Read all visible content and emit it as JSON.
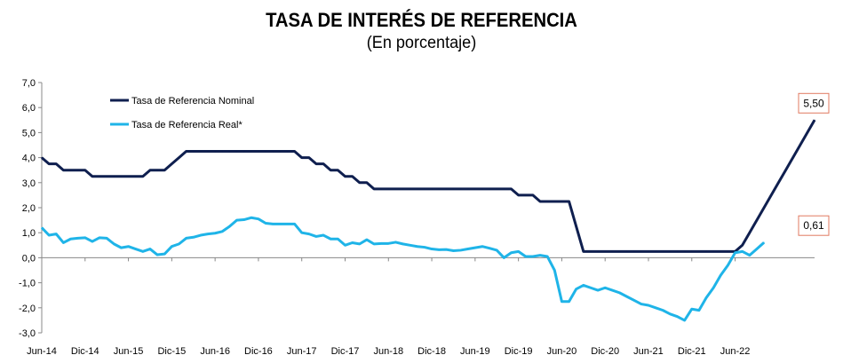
{
  "chart_data": {
    "type": "line",
    "title": "TASA DE INTERÉS DE REFERENCIA",
    "subtitle": "(En porcentaje)",
    "xlabel": "",
    "ylabel": "",
    "ylim": [
      -3.0,
      7.0
    ],
    "yticks": [
      "7,0",
      "6,0",
      "5,0",
      "4,0",
      "3,0",
      "2,0",
      "1,0",
      "0,0",
      "-1,0",
      "-2,0",
      "-3,0"
    ],
    "x_tick_labels": [
      "Jun-14",
      "Dic-14",
      "Jun-15",
      "Dic-15",
      "Jun-16",
      "Dic-16",
      "Jun-17",
      "Dic-17",
      "Jun-18",
      "Dic-18",
      "Jun-19",
      "Dic-19",
      "Jun-20",
      "Dic-20",
      "Jun-21",
      "Dic-21",
      "Jun-22"
    ],
    "grid": false,
    "legend_position": "top-left",
    "series": [
      {
        "name": "Tasa de Referencia Nominal",
        "color": "#0f1f4f",
        "values": [
          4.0,
          3.75,
          3.75,
          3.5,
          3.5,
          3.5,
          3.5,
          3.25,
          3.25,
          3.25,
          3.25,
          3.25,
          3.25,
          3.25,
          3.25,
          3.5,
          3.5,
          3.5,
          3.75,
          4.0,
          4.25,
          4.25,
          4.25,
          4.25,
          4.25,
          4.25,
          4.25,
          4.25,
          4.25,
          4.25,
          4.25,
          4.25,
          4.25,
          4.25,
          4.25,
          4.25,
          4.0,
          4.0,
          3.75,
          3.75,
          3.5,
          3.5,
          3.25,
          3.25,
          3.0,
          3.0,
          2.75,
          2.75,
          2.75,
          2.75,
          2.75,
          2.75,
          2.75,
          2.75,
          2.75,
          2.75,
          2.75,
          2.75,
          2.75,
          2.75,
          2.75,
          2.75,
          2.75,
          2.75,
          2.75,
          2.75,
          2.5,
          2.5,
          2.5,
          2.25,
          2.25,
          2.25,
          2.25,
          2.25,
          1.25,
          0.25,
          0.25,
          0.25,
          0.25,
          0.25,
          0.25,
          0.25,
          0.25,
          0.25,
          0.25,
          0.25,
          0.25,
          0.25,
          0.25,
          0.25,
          0.25,
          0.25,
          0.25,
          0.25,
          0.25,
          0.25,
          0.25,
          0.5,
          1.0,
          1.5,
          2.0,
          2.5,
          3.0,
          3.5,
          4.0,
          4.5,
          5.0,
          5.5
        ]
      },
      {
        "name": "Tasa de Referencia Real*",
        "color": "#1fb4e8",
        "values": [
          1.2,
          0.9,
          0.95,
          0.6,
          0.75,
          0.78,
          0.8,
          0.65,
          0.8,
          0.78,
          0.55,
          0.4,
          0.45,
          0.35,
          0.25,
          0.35,
          0.12,
          0.15,
          0.45,
          0.55,
          0.78,
          0.82,
          0.9,
          0.95,
          0.98,
          1.05,
          1.25,
          1.5,
          1.52,
          1.6,
          1.55,
          1.38,
          1.35,
          1.35,
          1.35,
          1.35,
          1.0,
          0.95,
          0.85,
          0.9,
          0.75,
          0.75,
          0.5,
          0.6,
          0.55,
          0.72,
          0.55,
          0.57,
          0.57,
          0.62,
          0.55,
          0.5,
          0.45,
          0.42,
          0.35,
          0.32,
          0.33,
          0.28,
          0.3,
          0.35,
          0.4,
          0.45,
          0.38,
          0.3,
          0.0,
          0.2,
          0.25,
          0.05,
          0.05,
          0.1,
          0.05,
          -0.5,
          -1.75,
          -1.75,
          -1.25,
          -1.1,
          -1.2,
          -1.3,
          -1.2,
          -1.3,
          -1.4,
          -1.55,
          -1.7,
          -1.85,
          -1.9,
          -2.0,
          -2.1,
          -2.25,
          -2.35,
          -2.5,
          -2.05,
          -2.1,
          -1.6,
          -1.2,
          -0.7,
          -0.3,
          0.2,
          0.25,
          0.1,
          0.35,
          0.61
        ]
      }
    ],
    "data_labels": [
      {
        "series": "Tasa de Referencia Nominal",
        "text": "5,50"
      },
      {
        "series": "Tasa de Referencia Real*",
        "text": "0,61"
      }
    ]
  }
}
